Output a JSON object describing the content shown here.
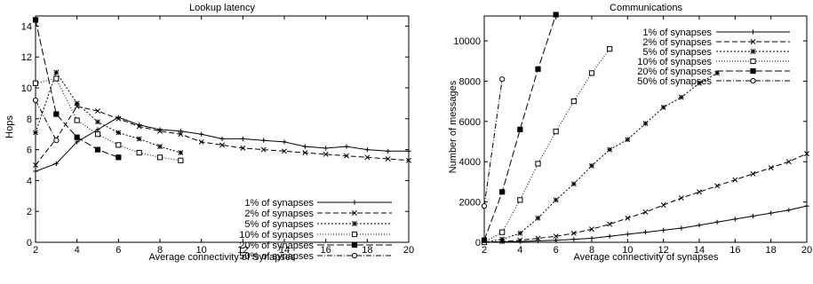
{
  "chart_data": [
    {
      "type": "line",
      "title": "Lookup latency",
      "xlabel": "Average connectivity of Synapses",
      "ylabel": "Hops",
      "xlim": [
        2,
        20
      ],
      "ylim": [
        0,
        15
      ],
      "xticks": [
        "2",
        "4",
        "6",
        "8",
        "10",
        "12",
        "14",
        "16",
        "18",
        "20"
      ],
      "yticks": [
        "0",
        "2",
        "4",
        "6",
        "8",
        "10",
        "12",
        "14"
      ],
      "legend_position": "bottom-right",
      "grid": false,
      "series": [
        {
          "name": "1% of synapses",
          "marker": "plus",
          "dash": "",
          "x": [
            2,
            3,
            4,
            5,
            6,
            7,
            8,
            9,
            10,
            11,
            12,
            13,
            14,
            15,
            16,
            17,
            18,
            19,
            20
          ],
          "y": [
            4.6,
            5.1,
            6.5,
            7.3,
            8.1,
            7.6,
            7.3,
            7.2,
            7.0,
            6.7,
            6.7,
            6.6,
            6.5,
            6.2,
            6.1,
            6.2,
            6.0,
            5.9,
            5.9
          ]
        },
        {
          "name": "2% of synapses",
          "marker": "x",
          "dash": "6,3",
          "x": [
            2,
            3,
            4,
            5,
            6,
            7,
            8,
            9,
            10,
            11,
            12,
            13,
            14,
            15,
            16,
            17,
            18,
            19,
            20
          ],
          "y": [
            5.0,
            6.7,
            8.8,
            8.5,
            8.0,
            7.5,
            7.2,
            7.0,
            6.5,
            6.3,
            6.1,
            6.0,
            5.9,
            5.8,
            5.7,
            5.6,
            5.5,
            5.4,
            5.3
          ]
        },
        {
          "name": "5% of synapses",
          "marker": "star",
          "dash": "2,2",
          "x": [
            2,
            3,
            4,
            5,
            6,
            7,
            8,
            9
          ],
          "y": [
            7.1,
            11.0,
            9.0,
            7.8,
            7.1,
            6.7,
            6.2,
            5.8
          ]
        },
        {
          "name": "10% of synapses",
          "marker": "square-open",
          "dash": "1,2",
          "x": [
            2,
            3,
            4,
            5,
            6,
            7,
            8,
            9
          ],
          "y": [
            10.3,
            10.6,
            7.9,
            7.0,
            6.3,
            5.8,
            5.5,
            5.3
          ]
        },
        {
          "name": "20% of synapses",
          "marker": "square-filled",
          "dash": "8,3",
          "x": [
            2,
            3,
            4,
            5,
            6
          ],
          "y": [
            14.4,
            8.3,
            6.8,
            6.0,
            5.5
          ]
        },
        {
          "name": "50% of synapses",
          "marker": "circle-open",
          "dash": "6,2,1,2",
          "x": [
            2,
            3
          ],
          "y": [
            9.2,
            6.6
          ]
        }
      ]
    },
    {
      "type": "line",
      "title": "Communications",
      "xlabel": "Average connectivity of synapses",
      "ylabel": "Number of messages",
      "xlim": [
        2,
        20
      ],
      "ylim": [
        0,
        11500
      ],
      "xticks": [
        "2",
        "4",
        "6",
        "8",
        "10",
        "12",
        "14",
        "16",
        "18",
        "20"
      ],
      "yticks": [
        "0",
        "2000",
        "4000",
        "6000",
        "8000",
        "10000"
      ],
      "legend_position": "top-right",
      "grid": false,
      "series": [
        {
          "name": "1% of synapses",
          "marker": "plus",
          "dash": "",
          "x": [
            2,
            3,
            4,
            5,
            6,
            7,
            8,
            9,
            10,
            11,
            12,
            13,
            14,
            15,
            16,
            17,
            18,
            19,
            20
          ],
          "y": [
            0,
            20,
            40,
            70,
            100,
            150,
            200,
            300,
            400,
            500,
            600,
            700,
            850,
            1000,
            1150,
            1300,
            1450,
            1600,
            1800
          ]
        },
        {
          "name": "2% of synapses",
          "marker": "x",
          "dash": "6,3",
          "x": [
            2,
            3,
            4,
            5,
            6,
            7,
            8,
            9,
            10,
            11,
            12,
            13,
            14,
            15,
            16,
            17,
            18,
            19,
            20
          ],
          "y": [
            0,
            40,
            100,
            200,
            300,
            450,
            650,
            900,
            1200,
            1500,
            1850,
            2200,
            2500,
            2800,
            3100,
            3400,
            3700,
            4000,
            4400
          ]
        },
        {
          "name": "5% of synapses",
          "marker": "star",
          "dash": "2,2",
          "x": [
            2,
            3,
            4,
            5,
            6,
            7,
            8,
            9,
            10,
            11,
            12,
            13,
            14,
            15
          ],
          "y": [
            0,
            150,
            450,
            1200,
            2100,
            2900,
            3800,
            4600,
            5100,
            5900,
            6700,
            7200,
            7900,
            8400
          ]
        },
        {
          "name": "10% of synapses",
          "marker": "square-open",
          "dash": "1,2",
          "x": [
            2,
            3,
            4,
            5,
            6,
            7,
            8,
            9
          ],
          "y": [
            0,
            500,
            2100,
            3900,
            5500,
            7000,
            8400,
            9600
          ]
        },
        {
          "name": "20% of synapses",
          "marker": "square-filled",
          "dash": "8,3",
          "x": [
            2,
            3,
            4,
            5,
            6
          ],
          "y": [
            100,
            2500,
            5600,
            8600,
            11300
          ]
        },
        {
          "name": "50% of synapses",
          "marker": "circle-open",
          "dash": "6,2,1,2",
          "x": [
            2,
            3
          ],
          "y": [
            1800,
            8100
          ]
        }
      ]
    }
  ]
}
